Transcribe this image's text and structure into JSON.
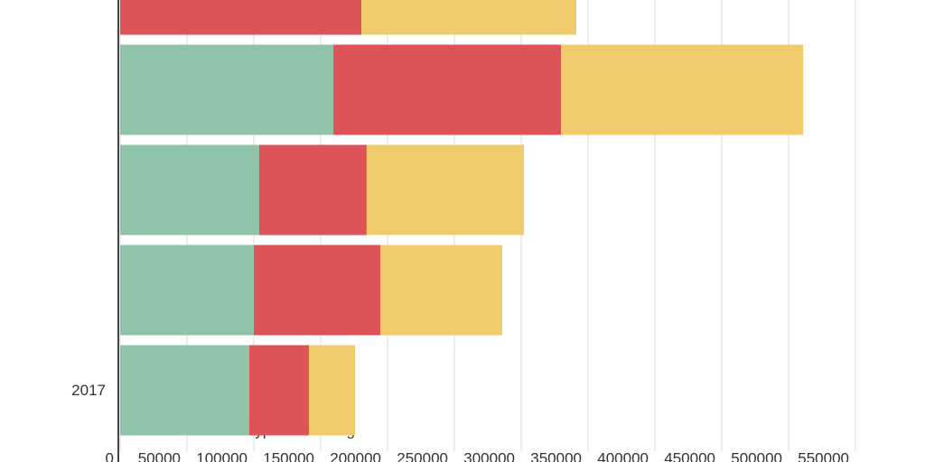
{
  "chart_data": {
    "type": "stacked-bar-horizontal",
    "x_label": "Type something",
    "categories": [
      null,
      null,
      null,
      null,
      "2017"
    ],
    "series": [
      {
        "color": "#8fc4a9",
        "values": [
          0,
          159500,
          104000,
          100000,
          96600
        ]
      },
      {
        "color": "#dd5357",
        "values": [
          180400,
          170300,
          80400,
          94600,
          44600
        ]
      },
      {
        "color": "#efcb6b",
        "values": [
          160800,
          181100,
          117600,
          91200,
          34500
        ]
      }
    ],
    "xlim": [
      0,
      600000
    ],
    "xticks": [
      0,
      50000,
      100000,
      150000,
      200000,
      250000,
      300000,
      350000,
      400000,
      450000,
      500000,
      550000
    ],
    "grid": true
  }
}
